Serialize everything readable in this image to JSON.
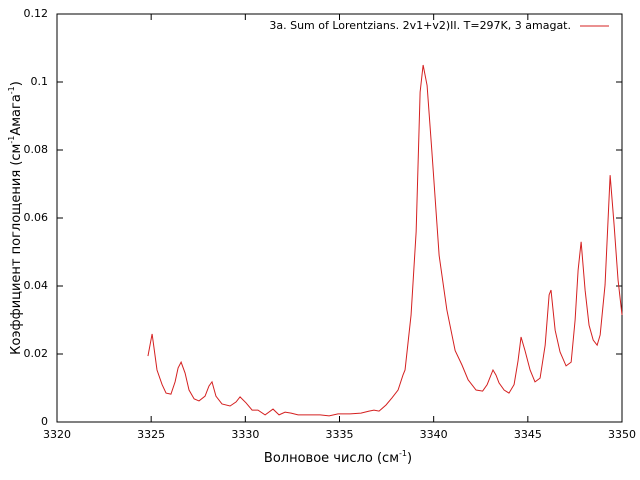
{
  "chart_data": {
    "type": "line",
    "xlabel": [
      "Волновое число (см",
      "-1",
      ")"
    ],
    "ylabel": [
      "Коэффициент поглощения (см",
      "-1",
      "Амага",
      "-1",
      ")"
    ],
    "xlim": [
      3320,
      3350
    ],
    "xticks": [
      3320,
      3325,
      3330,
      3335,
      3340,
      3345,
      3350
    ],
    "ylim": [
      0,
      0.12
    ],
    "yticks": [
      0,
      0.02,
      0.04,
      0.06,
      0.08,
      0.1,
      0.12
    ],
    "grid": false,
    "legend": "top-right",
    "x": [
      3324.83,
      3325.05,
      3325.31,
      3325.58,
      3325.79,
      3326.05,
      3326.27,
      3326.43,
      3326.59,
      3326.8,
      3327.01,
      3327.28,
      3327.54,
      3327.86,
      3328.07,
      3328.23,
      3328.44,
      3328.76,
      3329.19,
      3329.51,
      3329.72,
      3330.04,
      3330.36,
      3330.67,
      3331.05,
      3331.47,
      3331.79,
      3332.11,
      3332.43,
      3332.8,
      3333.44,
      3333.97,
      3334.45,
      3334.92,
      3335.56,
      3336.14,
      3336.57,
      3336.83,
      3337.1,
      3337.47,
      3337.79,
      3338.11,
      3338.37,
      3338.48,
      3338.8,
      3339.07,
      3339.28,
      3339.44,
      3339.65,
      3339.9,
      3340.29,
      3340.7,
      3341.14,
      3341.5,
      3341.83,
      3342.25,
      3342.6,
      3342.84,
      3343.15,
      3343.31,
      3343.47,
      3343.74,
      3344.0,
      3344.27,
      3344.48,
      3344.64,
      3344.85,
      3345.12,
      3345.38,
      3345.65,
      3345.92,
      3346.13,
      3346.23,
      3346.45,
      3346.71,
      3347.03,
      3347.3,
      3347.51,
      3347.67,
      3347.83,
      3348.04,
      3348.25,
      3348.47,
      3348.68,
      3348.84,
      3349.1,
      3349.37,
      3349.58,
      3349.79,
      3350.0
    ],
    "series": [
      {
        "name": "3a. Sum of Lorentzians. 2v1+v2)II. T=297K, 3 amagat.",
        "color": "#d42020",
        "values": [
          0.0194,
          0.0259,
          0.0153,
          0.011,
          0.0085,
          0.0082,
          0.0118,
          0.0159,
          0.0176,
          0.0144,
          0.0094,
          0.0068,
          0.0062,
          0.0076,
          0.0106,
          0.0118,
          0.0076,
          0.0053,
          0.0047,
          0.0059,
          0.0074,
          0.0056,
          0.0035,
          0.0035,
          0.0021,
          0.0038,
          0.0021,
          0.0029,
          0.0026,
          0.0021,
          0.0021,
          0.0021,
          0.0018,
          0.0024,
          0.0024,
          0.0026,
          0.0032,
          0.0035,
          0.0032,
          0.005,
          0.0071,
          0.0094,
          0.0138,
          0.0153,
          0.0315,
          0.056,
          0.097,
          0.105,
          0.099,
          0.08,
          0.049,
          0.033,
          0.021,
          0.0168,
          0.0124,
          0.0094,
          0.0091,
          0.011,
          0.0153,
          0.0138,
          0.0115,
          0.0094,
          0.0085,
          0.011,
          0.018,
          0.025,
          0.021,
          0.0153,
          0.0118,
          0.0129,
          0.0226,
          0.0374,
          0.0388,
          0.027,
          0.0206,
          0.0165,
          0.0176,
          0.03,
          0.0447,
          0.053,
          0.0388,
          0.0285,
          0.0241,
          0.0226,
          0.0256,
          0.0403,
          0.0726,
          0.058,
          0.0418,
          0.0315
        ]
      }
    ]
  }
}
